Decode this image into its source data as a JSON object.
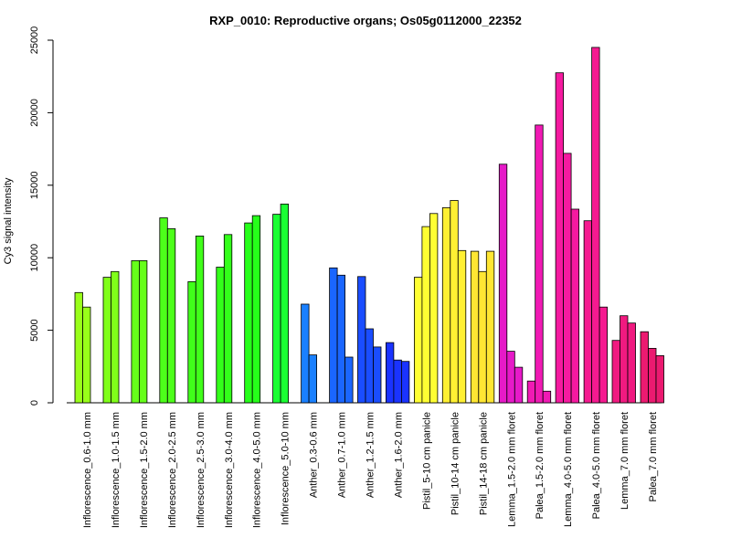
{
  "chart_data": {
    "type": "bar",
    "title": "RXP_0010: Reproductive organs; Os05g0112000_22352",
    "xlabel": "",
    "ylabel": "Cy3 signal intensity",
    "ylim": [
      0,
      25000
    ],
    "yticks": [
      0,
      5000,
      10000,
      15000,
      20000,
      25000
    ],
    "grid": false,
    "legend": "none",
    "groups": [
      {
        "label": "Inflorescence_0.6-1.0 mm",
        "color": "#99FF1A",
        "values": [
          7600,
          6600
        ]
      },
      {
        "label": "Inflorescence_1.0-1.5 mm",
        "color": "#80FF1A",
        "values": [
          8650,
          9050
        ]
      },
      {
        "label": "Inflorescence_1.5-2.0 mm",
        "color": "#66FF1A",
        "values": [
          9800,
          9800
        ]
      },
      {
        "label": "Inflorescence_2.0-2.5 mm",
        "color": "#4DFF1A",
        "values": [
          12750,
          12000
        ]
      },
      {
        "label": "Inflorescence_2.5-3.0 mm",
        "color": "#40FF1A",
        "values": [
          8350,
          11500
        ]
      },
      {
        "label": "Inflorescence_3.0-4.0 mm",
        "color": "#33FF1A",
        "values": [
          9350,
          11600
        ]
      },
      {
        "label": "Inflorescence_4.0-5.0 mm",
        "color": "#26FF1A",
        "values": [
          12400,
          12900
        ]
      },
      {
        "label": "Inflorescence_5.0-10 mm",
        "color": "#1AFF33",
        "values": [
          13000,
          13700
        ]
      },
      {
        "label": "Anther_0.3-0.6 mm",
        "color": "#1A80FF",
        "values": [
          6800,
          3300
        ]
      },
      {
        "label": "Anther_0.7-1.0 mm",
        "color": "#1A66FF",
        "values": [
          9300,
          8800,
          3150
        ]
      },
      {
        "label": "Anther_1.2-1.5 mm",
        "color": "#1A4DFF",
        "values": [
          8700,
          5100,
          3850
        ]
      },
      {
        "label": "Anther_1.6-2.0 mm",
        "color": "#1A33FF",
        "values": [
          4150,
          2950,
          2850
        ]
      },
      {
        "label": "Pistil_5-10 cm panicle",
        "color": "#FFFF33",
        "values": [
          8650,
          12150,
          13050
        ]
      },
      {
        "label": "Pistil_10-14 cm panicle",
        "color": "#FFF033",
        "values": [
          13450,
          13950,
          10500
        ]
      },
      {
        "label": "Pistil_14-18 cm panicle",
        "color": "#FFE633",
        "values": [
          10450,
          9050,
          10450
        ]
      },
      {
        "label": "Lemma_1.5-2.0 mm floret",
        "color": "#E61AC8",
        "values": [
          16450,
          3550,
          2450
        ]
      },
      {
        "label": "Palea_1.5-2.0 mm floret",
        "color": "#F01AB4",
        "values": [
          1500,
          19150,
          800
        ]
      },
      {
        "label": "Lemma_4.0-5.0 mm floret",
        "color": "#F51AA0",
        "values": [
          22750,
          17200,
          13350
        ]
      },
      {
        "label": "Palea_4.0-5.0 mm floret",
        "color": "#F51A90",
        "values": [
          12550,
          24500,
          6600
        ]
      },
      {
        "label": "Lemma_7.0 mm floret",
        "color": "#F01A80",
        "values": [
          4300,
          6000,
          5500
        ]
      },
      {
        "label": "Palea_7.0 mm floret",
        "color": "#EB1A70",
        "values": [
          4900,
          3750,
          3250
        ]
      }
    ]
  }
}
